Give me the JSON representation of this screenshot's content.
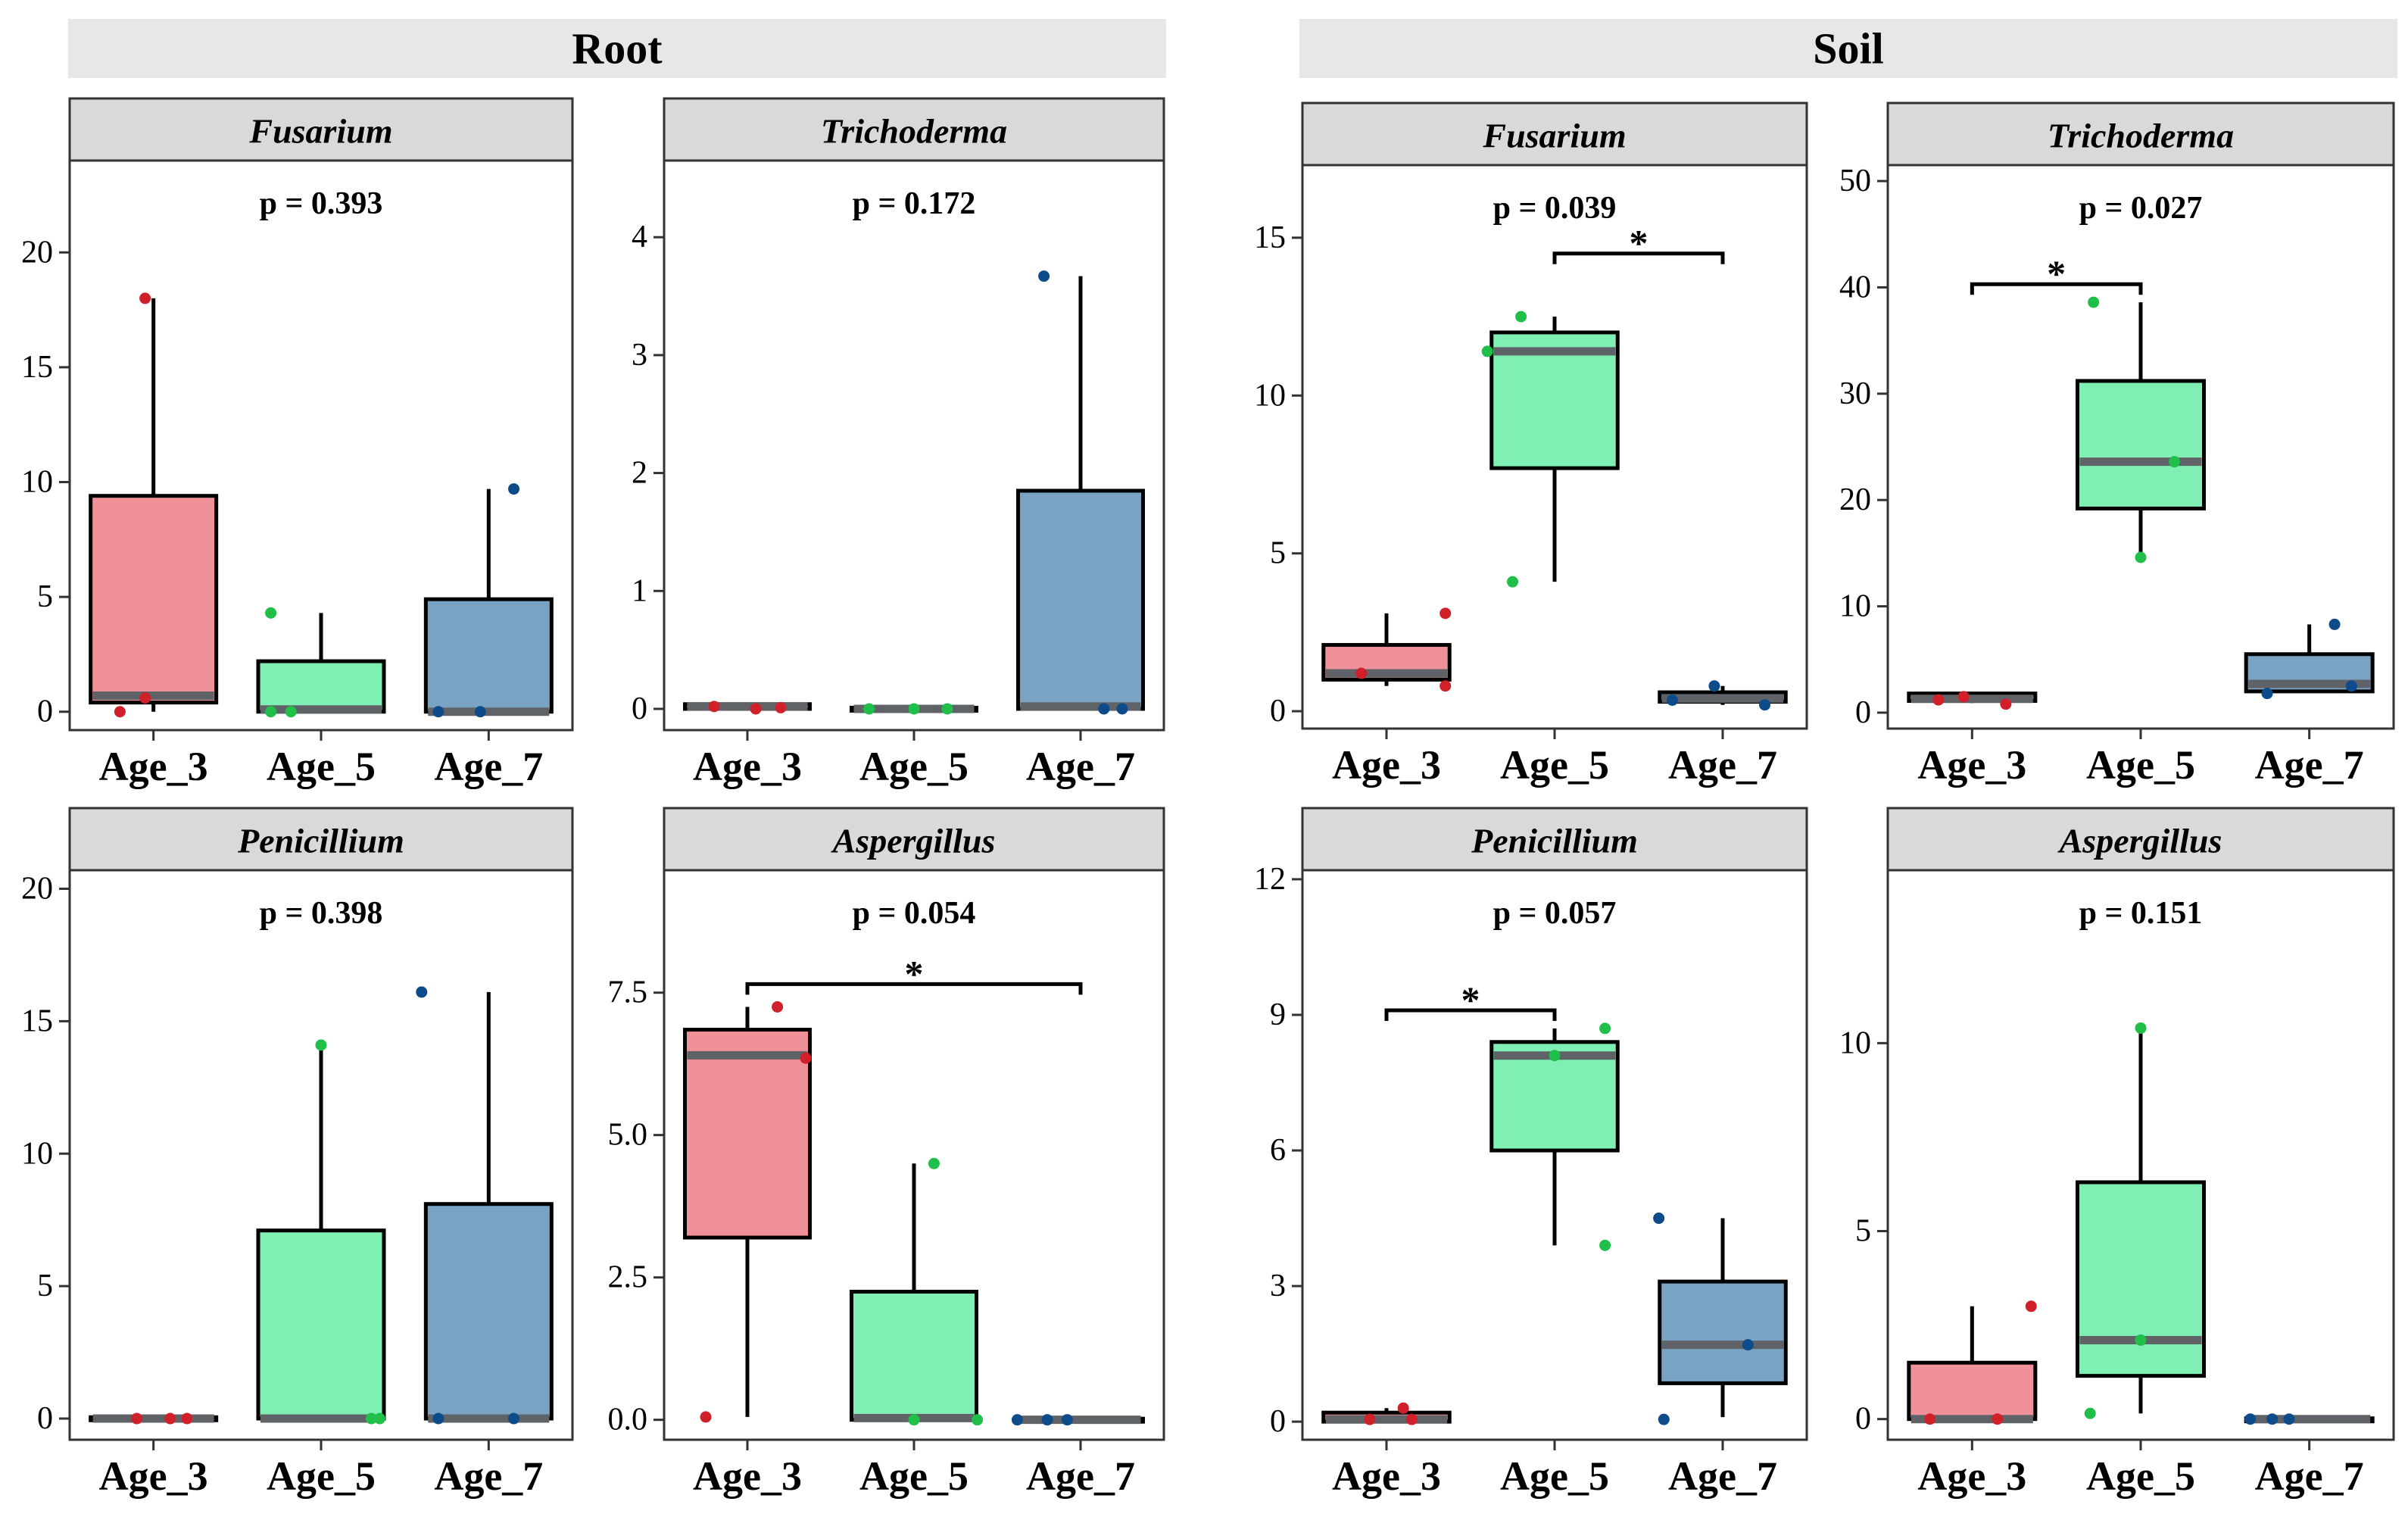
{
  "groups": [
    "Root",
    "Soil"
  ],
  "colors": {
    "Age_3_fill": "#f0919a",
    "Age_5_fill": "#7fefb4",
    "Age_7_fill": "#7aa3c3",
    "Age_3_point": "#d0202a",
    "Age_5_point": "#1fbf4a",
    "Age_7_point": "#0e4b8a",
    "median": "#5f6368",
    "strip_bg": "#d9d9d9",
    "group_bg": "#e8e6e6"
  },
  "chart_data": [
    {
      "type": "box",
      "group": "Root",
      "title": "Fusarium",
      "p_label": "p = 0.393",
      "categories": [
        "Age_3",
        "Age_5",
        "Age_7"
      ],
      "ylim": [
        -0.8,
        24.0
      ],
      "yticks": [
        0,
        5,
        10,
        15,
        20
      ],
      "ytick_labels": [
        "0",
        "5",
        "10",
        "15",
        "20"
      ],
      "boxes": [
        {
          "category": "Age_3",
          "q1": 0.4,
          "median": 0.7,
          "q3": 9.4,
          "whisker_low": 0.0,
          "whisker_high": 18.0
        },
        {
          "category": "Age_5",
          "q1": 0.0,
          "median": 0.1,
          "q3": 2.2,
          "whisker_low": 0.0,
          "whisker_high": 4.3
        },
        {
          "category": "Age_7",
          "q1": 0.0,
          "median": 0.0,
          "q3": 4.9,
          "whisker_low": 0.0,
          "whisker_high": 9.7
        }
      ],
      "points": [
        {
          "category": "Age_3",
          "offset": -0.2,
          "value": 0.0
        },
        {
          "category": "Age_3",
          "offset": -0.05,
          "value": 0.6
        },
        {
          "category": "Age_3",
          "offset": -0.05,
          "value": 18.0
        },
        {
          "category": "Age_5",
          "offset": -0.3,
          "value": 0.0
        },
        {
          "category": "Age_5",
          "offset": -0.18,
          "value": 0.0
        },
        {
          "category": "Age_5",
          "offset": -0.3,
          "value": 4.3
        },
        {
          "category": "Age_7",
          "offset": -0.3,
          "value": 0.0
        },
        {
          "category": "Age_7",
          "offset": -0.05,
          "value": 0.0
        },
        {
          "category": "Age_7",
          "offset": 0.15,
          "value": 9.7
        }
      ],
      "comparisons": []
    },
    {
      "type": "box",
      "group": "Root",
      "title": "Trichoderma",
      "p_label": "p = 0.172",
      "categories": [
        "Age_3",
        "Age_5",
        "Age_7"
      ],
      "ylim": [
        -0.18,
        4.65
      ],
      "yticks": [
        0,
        1,
        2,
        3,
        4
      ],
      "ytick_labels": [
        "0",
        "1",
        "2",
        "3",
        "4"
      ],
      "boxes": [
        {
          "category": "Age_3",
          "q1": 0.0,
          "median": 0.02,
          "q3": 0.04,
          "whisker_low": 0.0,
          "whisker_high": 0.05
        },
        {
          "category": "Age_5",
          "q1": 0.0,
          "median": 0.0,
          "q3": 0.01,
          "whisker_low": 0.0,
          "whisker_high": 0.01
        },
        {
          "category": "Age_7",
          "q1": 0.0,
          "median": 0.02,
          "q3": 1.85,
          "whisker_low": 0.0,
          "whisker_high": 3.67
        }
      ],
      "points": [
        {
          "category": "Age_3",
          "offset": -0.2,
          "value": 0.02
        },
        {
          "category": "Age_3",
          "offset": 0.05,
          "value": 0.0
        },
        {
          "category": "Age_3",
          "offset": 0.2,
          "value": 0.01
        },
        {
          "category": "Age_5",
          "offset": -0.27,
          "value": 0.0
        },
        {
          "category": "Age_5",
          "offset": 0.0,
          "value": 0.0
        },
        {
          "category": "Age_5",
          "offset": 0.2,
          "value": 0.0
        },
        {
          "category": "Age_7",
          "offset": -0.22,
          "value": 3.67
        },
        {
          "category": "Age_7",
          "offset": 0.14,
          "value": 0.0
        },
        {
          "category": "Age_7",
          "offset": 0.25,
          "value": 0.0
        }
      ],
      "comparisons": []
    },
    {
      "type": "box",
      "group": "Soil",
      "title": "Fusarium",
      "p_label": "p = 0.039",
      "categories": [
        "Age_3",
        "Age_5",
        "Age_7"
      ],
      "ylim": [
        -0.55,
        17.3
      ],
      "yticks": [
        0,
        5,
        10,
        15
      ],
      "ytick_labels": [
        "0",
        "5",
        "10",
        "15"
      ],
      "boxes": [
        {
          "category": "Age_3",
          "q1": 1.0,
          "median": 1.2,
          "q3": 2.1,
          "whisker_low": 0.8,
          "whisker_high": 3.1
        },
        {
          "category": "Age_5",
          "q1": 7.7,
          "median": 11.4,
          "q3": 12.0,
          "whisker_low": 4.1,
          "whisker_high": 12.5
        },
        {
          "category": "Age_7",
          "q1": 0.3,
          "median": 0.4,
          "q3": 0.6,
          "whisker_low": 0.2,
          "whisker_high": 0.8
        }
      ],
      "points": [
        {
          "category": "Age_3",
          "offset": -0.15,
          "value": 1.2
        },
        {
          "category": "Age_3",
          "offset": 0.35,
          "value": 0.8
        },
        {
          "category": "Age_3",
          "offset": 0.35,
          "value": 3.1
        },
        {
          "category": "Age_5",
          "offset": -0.25,
          "value": 4.1
        },
        {
          "category": "Age_5",
          "offset": -0.4,
          "value": 11.4
        },
        {
          "category": "Age_5",
          "offset": -0.2,
          "value": 12.5
        },
        {
          "category": "Age_7",
          "offset": -0.3,
          "value": 0.35
        },
        {
          "category": "Age_7",
          "offset": -0.05,
          "value": 0.8
        },
        {
          "category": "Age_7",
          "offset": 0.25,
          "value": 0.2
        }
      ],
      "comparisons": [
        {
          "from": "Age_5",
          "to": "Age_7",
          "y": 14.5,
          "label": "*"
        }
      ]
    },
    {
      "type": "box",
      "group": "Soil",
      "title": "Trichoderma",
      "p_label": "p = 0.027",
      "categories": [
        "Age_3",
        "Age_5",
        "Age_7"
      ],
      "ylim": [
        -1.5,
        51.5
      ],
      "yticks": [
        0,
        10,
        20,
        30,
        40,
        50
      ],
      "ytick_labels": [
        "0",
        "10",
        "20",
        "30",
        "40",
        "50"
      ],
      "boxes": [
        {
          "category": "Age_3",
          "q1": 1.1,
          "median": 1.3,
          "q3": 1.8,
          "whisker_low": 0.9,
          "whisker_high": 1.8
        },
        {
          "category": "Age_5",
          "q1": 19.2,
          "median": 23.6,
          "q3": 31.2,
          "whisker_low": 14.6,
          "whisker_high": 38.6
        },
        {
          "category": "Age_7",
          "q1": 2.0,
          "median": 2.7,
          "q3": 5.5,
          "whisker_low": 1.9,
          "whisker_high": 8.3
        }
      ],
      "points": [
        {
          "category": "Age_3",
          "offset": -0.05,
          "value": 1.5
        },
        {
          "category": "Age_3",
          "offset": 0.2,
          "value": 0.8
        },
        {
          "category": "Age_3",
          "offset": -0.2,
          "value": 1.2
        },
        {
          "category": "Age_5",
          "offset": -0.28,
          "value": 38.6
        },
        {
          "category": "Age_5",
          "offset": 0.2,
          "value": 23.6
        },
        {
          "category": "Age_5",
          "offset": 0.0,
          "value": 14.6
        },
        {
          "category": "Age_7",
          "offset": -0.25,
          "value": 1.8
        },
        {
          "category": "Age_7",
          "offset": 0.15,
          "value": 8.3
        },
        {
          "category": "Age_7",
          "offset": 0.25,
          "value": 2.5
        }
      ],
      "comparisons": [
        {
          "from": "Age_3",
          "to": "Age_5",
          "y": 40.3,
          "label": "*"
        }
      ]
    },
    {
      "type": "box",
      "group": "Root",
      "title": "Penicillium",
      "p_label": "p = 0.398",
      "categories": [
        "Age_3",
        "Age_5",
        "Age_7"
      ],
      "ylim": [
        -0.8,
        20.7
      ],
      "yticks": [
        0,
        5,
        10,
        15,
        20
      ],
      "ytick_labels": [
        "0",
        "5",
        "10",
        "15",
        "20"
      ],
      "boxes": [
        {
          "category": "Age_3",
          "q1": 0.0,
          "median": 0.0,
          "q3": 0.05,
          "whisker_low": 0.0,
          "whisker_high": 0.05
        },
        {
          "category": "Age_5",
          "q1": 0.0,
          "median": 0.0,
          "q3": 7.1,
          "whisker_low": 0.0,
          "whisker_high": 14.1
        },
        {
          "category": "Age_7",
          "q1": 0.0,
          "median": 0.0,
          "q3": 8.1,
          "whisker_low": 0.0,
          "whisker_high": 16.1
        }
      ],
      "points": [
        {
          "category": "Age_3",
          "offset": -0.1,
          "value": 0.0
        },
        {
          "category": "Age_3",
          "offset": 0.1,
          "value": 0.0
        },
        {
          "category": "Age_3",
          "offset": 0.2,
          "value": 0.0
        },
        {
          "category": "Age_5",
          "offset": 0.3,
          "value": 0.0
        },
        {
          "category": "Age_5",
          "offset": 0.35,
          "value": 0.0
        },
        {
          "category": "Age_5",
          "offset": 0.0,
          "value": 14.1
        },
        {
          "category": "Age_7",
          "offset": -0.3,
          "value": 0.0
        },
        {
          "category": "Age_7",
          "offset": 0.15,
          "value": 0.0
        },
        {
          "category": "Age_7",
          "offset": -0.4,
          "value": 16.1
        }
      ],
      "comparisons": []
    },
    {
      "type": "box",
      "group": "Root",
      "title": "Aspergillus",
      "p_label": "p = 0.054",
      "categories": [
        "Age_3",
        "Age_5",
        "Age_7"
      ],
      "ylim": [
        -0.35,
        9.65
      ],
      "yticks": [
        0,
        2.5,
        5,
        7.5
      ],
      "ytick_labels": [
        "0.0",
        "2.5",
        "5.0",
        "7.5"
      ],
      "boxes": [
        {
          "category": "Age_3",
          "q1": 3.2,
          "median": 6.4,
          "q3": 6.85,
          "whisker_low": 0.05,
          "whisker_high": 7.25
        },
        {
          "category": "Age_5",
          "q1": 0.0,
          "median": 0.03,
          "q3": 2.25,
          "whisker_low": 0.0,
          "whisker_high": 4.5
        },
        {
          "category": "Age_7",
          "q1": 0.0,
          "median": 0.0,
          "q3": 0.02,
          "whisker_low": 0.0,
          "whisker_high": 0.02
        }
      ],
      "points": [
        {
          "category": "Age_3",
          "offset": -0.25,
          "value": 0.05
        },
        {
          "category": "Age_3",
          "offset": 0.18,
          "value": 7.25
        },
        {
          "category": "Age_3",
          "offset": 0.35,
          "value": 6.35
        },
        {
          "category": "Age_5",
          "offset": 0.0,
          "value": 0.0
        },
        {
          "category": "Age_5",
          "offset": 0.38,
          "value": 0.0
        },
        {
          "category": "Age_5",
          "offset": 0.12,
          "value": 4.5
        },
        {
          "category": "Age_7",
          "offset": -0.38,
          "value": 0.0
        },
        {
          "category": "Age_7",
          "offset": -0.2,
          "value": 0.0
        },
        {
          "category": "Age_7",
          "offset": -0.08,
          "value": 0.0
        }
      ],
      "comparisons": [
        {
          "from": "Age_3",
          "to": "Age_7",
          "y": 7.65,
          "label": "*"
        }
      ]
    },
    {
      "type": "box",
      "group": "Soil",
      "title": "Penicillium",
      "p_label": "p = 0.057",
      "categories": [
        "Age_3",
        "Age_5",
        "Age_7"
      ],
      "ylim": [
        -0.4,
        12.2
      ],
      "yticks": [
        0,
        3,
        6,
        9,
        12
      ],
      "ytick_labels": [
        "0",
        "3",
        "6",
        "9",
        "12"
      ],
      "boxes": [
        {
          "category": "Age_3",
          "q1": 0.0,
          "median": 0.05,
          "q3": 0.2,
          "whisker_low": 0.0,
          "whisker_high": 0.3
        },
        {
          "category": "Age_5",
          "q1": 6.0,
          "median": 8.1,
          "q3": 8.4,
          "whisker_low": 3.9,
          "whisker_high": 8.7
        },
        {
          "category": "Age_7",
          "q1": 0.85,
          "median": 1.7,
          "q3": 3.1,
          "whisker_low": 0.1,
          "whisker_high": 4.5
        }
      ],
      "points": [
        {
          "category": "Age_3",
          "offset": -0.1,
          "value": 0.05
        },
        {
          "category": "Age_3",
          "offset": 0.1,
          "value": 0.3
        },
        {
          "category": "Age_3",
          "offset": 0.15,
          "value": 0.05
        },
        {
          "category": "Age_5",
          "offset": 0.0,
          "value": 8.1
        },
        {
          "category": "Age_5",
          "offset": 0.3,
          "value": 8.7
        },
        {
          "category": "Age_5",
          "offset": 0.3,
          "value": 3.9
        },
        {
          "category": "Age_7",
          "offset": -0.38,
          "value": 4.5
        },
        {
          "category": "Age_7",
          "offset": -0.35,
          "value": 0.05
        },
        {
          "category": "Age_7",
          "offset": 0.15,
          "value": 1.7
        }
      ],
      "comparisons": [
        {
          "from": "Age_3",
          "to": "Age_5",
          "y": 9.1,
          "label": "*"
        }
      ]
    },
    {
      "type": "box",
      "group": "Soil",
      "title": "Aspergillus",
      "p_label": "p = 0.151",
      "categories": [
        "Age_3",
        "Age_5",
        "Age_7"
      ],
      "ylim": [
        -0.55,
        14.6
      ],
      "yticks": [
        0,
        5,
        10
      ],
      "ytick_labels": [
        "0",
        "5",
        "10"
      ],
      "boxes": [
        {
          "category": "Age_3",
          "q1": 0.0,
          "median": 0.0,
          "q3": 1.5,
          "whisker_low": 0.0,
          "whisker_high": 3.0
        },
        {
          "category": "Age_5",
          "q1": 1.15,
          "median": 2.1,
          "q3": 6.3,
          "whisker_low": 0.15,
          "whisker_high": 10.4
        },
        {
          "category": "Age_7",
          "q1": 0.0,
          "median": 0.0,
          "q3": 0.02,
          "whisker_low": 0.0,
          "whisker_high": 0.02
        }
      ],
      "points": [
        {
          "category": "Age_3",
          "offset": -0.25,
          "value": 0.0
        },
        {
          "category": "Age_3",
          "offset": 0.15,
          "value": 0.0
        },
        {
          "category": "Age_3",
          "offset": 0.35,
          "value": 3.0
        },
        {
          "category": "Age_5",
          "offset": 0.0,
          "value": 10.4
        },
        {
          "category": "Age_5",
          "offset": 0.0,
          "value": 2.1
        },
        {
          "category": "Age_5",
          "offset": -0.3,
          "value": 0.15
        },
        {
          "category": "Age_7",
          "offset": -0.35,
          "value": 0.0
        },
        {
          "category": "Age_7",
          "offset": -0.22,
          "value": 0.0
        },
        {
          "category": "Age_7",
          "offset": -0.12,
          "value": 0.0
        }
      ],
      "comparisons": []
    }
  ]
}
